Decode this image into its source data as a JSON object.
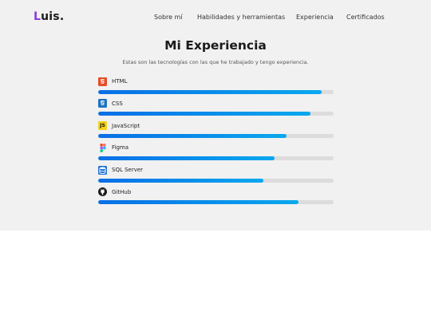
{
  "brand": {
    "logo_first": "L",
    "logo_rest": "uis."
  },
  "nav": {
    "links": [
      {
        "label": "Sobre mí"
      },
      {
        "label": "Habilidades y herramientas"
      },
      {
        "label": "Experiencia"
      },
      {
        "label": "Certificados"
      }
    ]
  },
  "experience": {
    "title": "Mi Experiencia",
    "subtitle": "Estas son las tecnologías con las que he trabajado y tengo experiencia.",
    "skills": [
      {
        "name": "HTML",
        "icon": "html5-icon",
        "level_percent": 95
      },
      {
        "name": "CSS",
        "icon": "css3-icon",
        "level_percent": 90
      },
      {
        "name": "JavaScript",
        "icon": "javascript-icon",
        "level_percent": 80
      },
      {
        "name": "Figma",
        "icon": "figma-icon",
        "level_percent": 75
      },
      {
        "name": "SQL Server",
        "icon": "sql-server-icon",
        "level_percent": 70
      },
      {
        "name": "GitHub",
        "icon": "github-icon",
        "level_percent": 85
      }
    ]
  },
  "colors": {
    "accent_logo": "#8a3ad6",
    "bar_start": "#0a6fe6",
    "bar_end": "#0aa8ee",
    "bar_track": "#dcdcdc",
    "section_bg": "#f1f1f1"
  }
}
